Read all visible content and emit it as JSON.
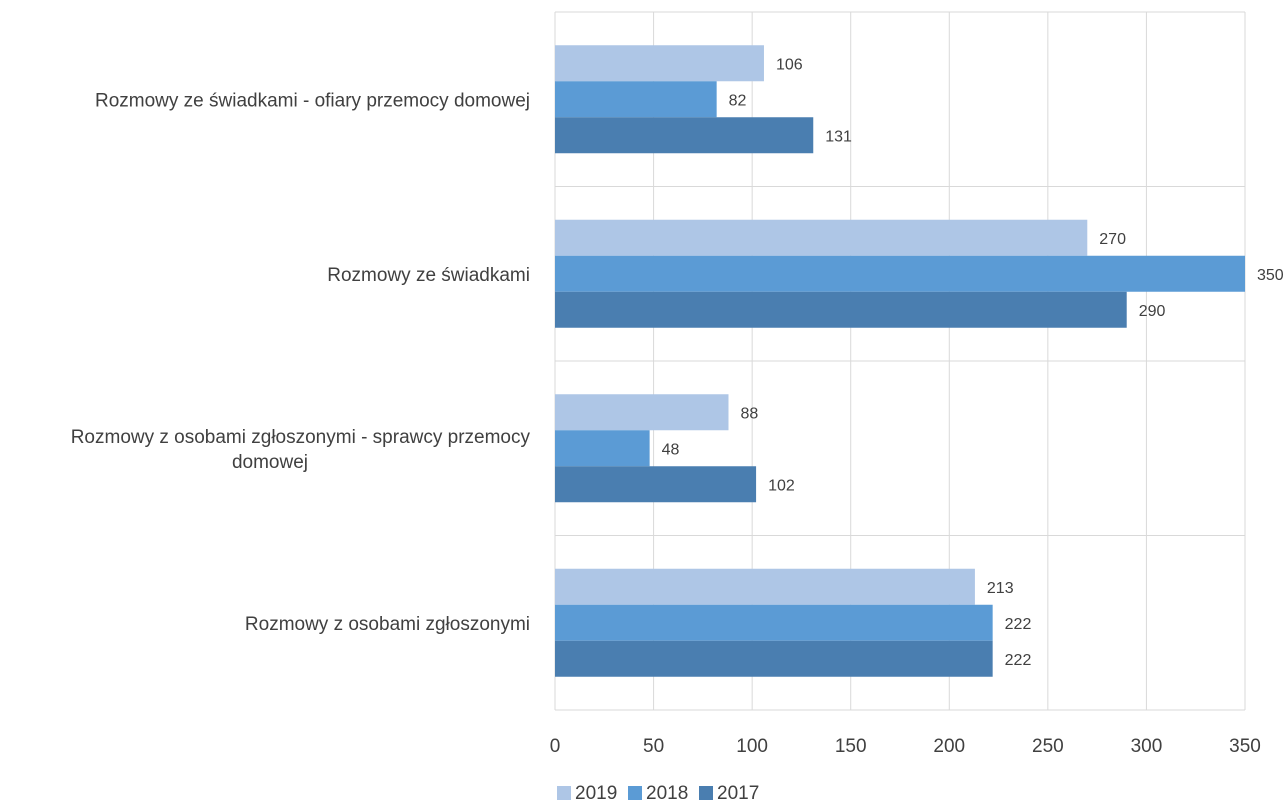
{
  "chart_data": {
    "type": "bar",
    "orientation": "horizontal",
    "categories": [
      "Rozmowy ze świadkami - ofiary przemocy domowej",
      "Rozmowy ze świadkami",
      "Rozmowy z osobami zgłoszonymi - sprawcy przemocy domowej",
      "Rozmowy z osobami zgłoszonymi"
    ],
    "category_lines": [
      [
        "Rozmowy ze świadkami - ofiary przemocy domowej"
      ],
      [
        "Rozmowy ze świadkami"
      ],
      [
        "Rozmowy z osobami zgłoszonymi - sprawcy przemocy",
        "domowej"
      ],
      [
        "Rozmowy z osobami zgłoszonymi"
      ]
    ],
    "series": [
      {
        "name": "2019",
        "color": "#aec6e6",
        "values": [
          106,
          270,
          88,
          213
        ]
      },
      {
        "name": "2018",
        "color": "#5b9bd5",
        "values": [
          82,
          350,
          48,
          222
        ]
      },
      {
        "name": "2017",
        "color": "#4a7eb0",
        "values": [
          131,
          290,
          102,
          222
        ]
      }
    ],
    "xlim": [
      0,
      350
    ],
    "xticks": [
      0,
      50,
      100,
      150,
      200,
      250,
      300,
      350
    ],
    "grid": true,
    "legend": "bottom",
    "title": "",
    "xlabel": "",
    "ylabel": ""
  }
}
